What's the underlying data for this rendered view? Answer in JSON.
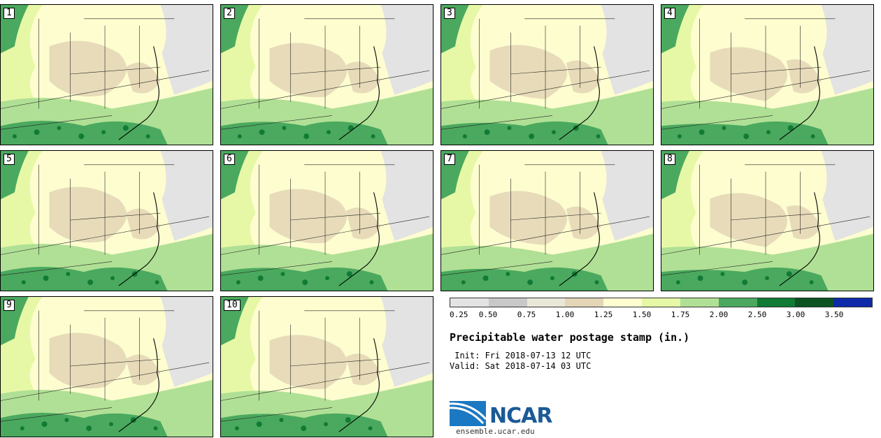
{
  "panels": [
    {
      "label": "1"
    },
    {
      "label": "2"
    },
    {
      "label": "3"
    },
    {
      "label": "4"
    },
    {
      "label": "5"
    },
    {
      "label": "6"
    },
    {
      "label": "7"
    },
    {
      "label": "8"
    },
    {
      "label": "9"
    },
    {
      "label": "10"
    }
  ],
  "colorbar": {
    "colors": [
      "#e3e3e3",
      "#c8c8c8",
      "#e9e8d8",
      "#e3d5b5",
      "#fdfdd0",
      "#e6f8a6",
      "#b0e095",
      "#4aa95e",
      "#117a34",
      "#0b5323",
      "#0f2aa8"
    ],
    "ticks": [
      "0.25",
      "0.50",
      "0.75",
      "1.00",
      "1.25",
      "1.50",
      "1.75",
      "2.00",
      "2.50",
      "3.00",
      "3.50"
    ]
  },
  "legend": {
    "title": "Precipitable water postage stamp (in.)",
    "init": " Init: Fri 2018-07-13 12 UTC",
    "valid": "Valid: Sat 2018-07-14 03 UTC"
  },
  "branding": {
    "logo_text": "NCAR",
    "site": "ensemble.ucar.edu"
  }
}
